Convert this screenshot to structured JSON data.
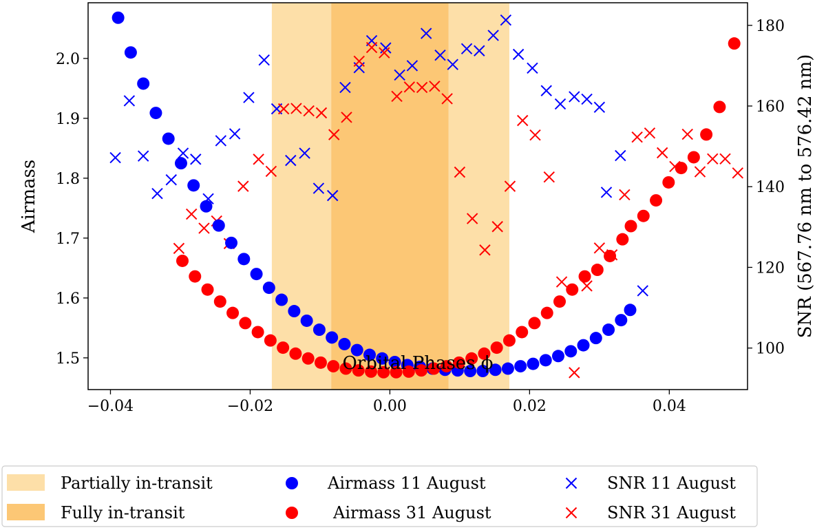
{
  "chart_data": {
    "type": "scatter",
    "xlabel": "Orbital Phases ϕ",
    "ylabel_left": "Airmass",
    "ylabel_right": "SNR (567.76 nm to 576.42 nm)",
    "x_range": [
      -0.0432,
      0.0512
    ],
    "y_left_range": [
      1.447,
      2.093
    ],
    "y_right_range": [
      89.7,
      185.6
    ],
    "x_ticks": [
      -0.04,
      -0.02,
      0.0,
      0.02,
      0.04
    ],
    "x_tick_labels": [
      "−0.04",
      "−0.02",
      "0.00",
      "0.02",
      "0.04"
    ],
    "y_left_ticks": [
      1.5,
      1.6,
      1.7,
      1.8,
      1.9,
      2.0
    ],
    "y_left_tick_labels": [
      "1.5",
      "1.6",
      "1.7",
      "1.8",
      "1.9",
      "2.0"
    ],
    "y_right_ticks": [
      100,
      120,
      140,
      160,
      180
    ],
    "y_right_tick_labels": [
      "100",
      "120",
      "140",
      "160",
      "180"
    ],
    "grid": false,
    "legend_position": "below plot, 3 columns",
    "regions": [
      {
        "name": "Partially in-transit",
        "ranges": [
          [
            -0.0169,
            -0.0084
          ],
          [
            0.0084,
            0.0171
          ]
        ],
        "color": "#fddfa8"
      },
      {
        "name": "Fully in-transit",
        "ranges": [
          [
            -0.0084,
            0.0084
          ]
        ],
        "color": "#fcc775"
      }
    ],
    "series": [
      {
        "name": "Airmass 11 August",
        "axis": "left",
        "marker": "circle",
        "color": "#0000ff",
        "points": [
          [
            -0.0389,
            2.068
          ],
          [
            -0.0371,
            2.01
          ],
          [
            -0.0353,
            1.958
          ],
          [
            -0.0335,
            1.909
          ],
          [
            -0.0317,
            1.866
          ],
          [
            -0.0299,
            1.825
          ],
          [
            -0.0281,
            1.788
          ],
          [
            -0.0263,
            1.753
          ],
          [
            -0.0245,
            1.721
          ],
          [
            -0.0227,
            1.692
          ],
          [
            -0.0209,
            1.665
          ],
          [
            -0.0191,
            1.64
          ],
          [
            -0.0173,
            1.617
          ],
          [
            -0.0155,
            1.597
          ],
          [
            -0.0137,
            1.578
          ],
          [
            -0.0119,
            1.562
          ],
          [
            -0.0101,
            1.547
          ],
          [
            -0.0083,
            1.534
          ],
          [
            -0.0065,
            1.523
          ],
          [
            -0.0047,
            1.513
          ],
          [
            -0.0029,
            1.505
          ],
          [
            -0.0011,
            1.499
          ],
          [
            0.0007,
            1.493
          ],
          [
            0.0025,
            1.488
          ],
          [
            0.0043,
            1.485
          ],
          [
            0.0061,
            1.482
          ],
          [
            0.0079,
            1.48
          ],
          [
            0.0097,
            1.479
          ],
          [
            0.0115,
            1.478
          ],
          [
            0.0133,
            1.478
          ],
          [
            0.0151,
            1.48
          ],
          [
            0.0169,
            1.482
          ],
          [
            0.0187,
            1.486
          ],
          [
            0.0205,
            1.49
          ],
          [
            0.0223,
            1.496
          ],
          [
            0.0241,
            1.503
          ],
          [
            0.0259,
            1.511
          ],
          [
            0.0277,
            1.521
          ],
          [
            0.0295,
            1.533
          ],
          [
            0.0313,
            1.547
          ],
          [
            0.0331,
            1.563
          ],
          [
            0.0344,
            1.58
          ]
        ]
      },
      {
        "name": "Airmass 31 August",
        "axis": "left",
        "marker": "circle",
        "color": "#ff0000",
        "points": [
          [
            -0.0297,
            1.662
          ],
          [
            -0.0279,
            1.636
          ],
          [
            -0.0261,
            1.614
          ],
          [
            -0.0243,
            1.594
          ],
          [
            -0.0225,
            1.575
          ],
          [
            -0.0207,
            1.558
          ],
          [
            -0.0189,
            1.543
          ],
          [
            -0.0171,
            1.529
          ],
          [
            -0.0153,
            1.517
          ],
          [
            -0.0135,
            1.507
          ],
          [
            -0.0117,
            1.499
          ],
          [
            -0.0099,
            1.492
          ],
          [
            -0.0081,
            1.486
          ],
          [
            -0.0063,
            1.482
          ],
          [
            -0.0045,
            1.479
          ],
          [
            -0.0027,
            1.477
          ],
          [
            -0.0009,
            1.476
          ],
          [
            0.0009,
            1.476
          ],
          [
            0.0027,
            1.477
          ],
          [
            0.0045,
            1.479
          ],
          [
            0.0063,
            1.482
          ],
          [
            0.0081,
            1.486
          ],
          [
            0.0099,
            1.492
          ],
          [
            0.0117,
            1.499
          ],
          [
            0.0135,
            1.507
          ],
          [
            0.0153,
            1.517
          ],
          [
            0.0171,
            1.529
          ],
          [
            0.0189,
            1.543
          ],
          [
            0.0207,
            1.558
          ],
          [
            0.0225,
            1.575
          ],
          [
            0.0243,
            1.594
          ],
          [
            0.0261,
            1.614
          ],
          [
            0.0279,
            1.636
          ],
          [
            0.0297,
            1.647
          ],
          [
            0.0315,
            1.67
          ],
          [
            0.0333,
            1.698
          ],
          [
            0.0345,
            1.72
          ],
          [
            0.0363,
            1.737
          ],
          [
            0.0381,
            1.763
          ],
          [
            0.0399,
            1.793
          ],
          [
            0.0417,
            1.817
          ],
          [
            0.0435,
            1.835
          ],
          [
            0.0453,
            1.873
          ],
          [
            0.0472,
            1.919
          ],
          [
            0.0493,
            2.025
          ]
        ]
      },
      {
        "name": "SNR 11 August",
        "axis": "right",
        "marker": "x",
        "color": "#0000ff",
        "points": [
          [
            -0.0393,
            147.2
          ],
          [
            -0.0373,
            161.3
          ],
          [
            -0.0353,
            147.6
          ],
          [
            -0.0333,
            138.3
          ],
          [
            -0.0313,
            141.7
          ],
          [
            -0.0296,
            148.3
          ],
          [
            -0.0278,
            146.8
          ],
          [
            -0.026,
            137.0
          ],
          [
            -0.0242,
            151.4
          ],
          [
            -0.0222,
            153.1
          ],
          [
            -0.0202,
            162.1
          ],
          [
            -0.018,
            171.4
          ],
          [
            -0.0162,
            159.3
          ],
          [
            -0.0142,
            146.5
          ],
          [
            -0.0122,
            148.3
          ],
          [
            -0.0102,
            139.6
          ],
          [
            -0.0082,
            137.8
          ],
          [
            -0.0064,
            164.6
          ],
          [
            -0.0044,
            169.5
          ],
          [
            -0.0026,
            176.2
          ],
          [
            -0.0006,
            174.4
          ],
          [
            0.0014,
            167.7
          ],
          [
            0.0032,
            170.0
          ],
          [
            0.0052,
            178.0
          ],
          [
            0.0072,
            172.6
          ],
          [
            0.009,
            170.3
          ],
          [
            0.011,
            174.2
          ],
          [
            0.0128,
            173.7
          ],
          [
            0.0148,
            177.5
          ],
          [
            0.0166,
            181.3
          ],
          [
            0.0184,
            172.8
          ],
          [
            0.0204,
            169.4
          ],
          [
            0.0224,
            163.8
          ],
          [
            0.0244,
            160.5
          ],
          [
            0.0264,
            162.3
          ],
          [
            0.0282,
            161.7
          ],
          [
            0.03,
            159.7
          ],
          [
            0.033,
            147.7
          ],
          [
            0.031,
            138.6
          ],
          [
            0.0362,
            114.2
          ]
        ]
      },
      {
        "name": "SNR 31 August",
        "axis": "right",
        "marker": "x",
        "color": "#ff0000",
        "points": [
          [
            -0.0302,
            124.7
          ],
          [
            -0.0284,
            133.2
          ],
          [
            -0.0266,
            129.7
          ],
          [
            -0.0248,
            131.5
          ],
          [
            -0.023,
            125.9
          ],
          [
            -0.021,
            140.1
          ],
          [
            -0.0188,
            146.8
          ],
          [
            -0.017,
            143.8
          ],
          [
            -0.0152,
            159.3
          ],
          [
            -0.0134,
            159.4
          ],
          [
            -0.0116,
            158.8
          ],
          [
            -0.0098,
            158.3
          ],
          [
            -0.008,
            152.9
          ],
          [
            -0.0062,
            157.2
          ],
          [
            -0.0044,
            171.1
          ],
          [
            -0.0026,
            174.5
          ],
          [
            -0.0008,
            173.2
          ],
          [
            0.001,
            162.4
          ],
          [
            0.0028,
            164.7
          ],
          [
            0.0046,
            164.6
          ],
          [
            0.0064,
            164.9
          ],
          [
            0.0082,
            161.8
          ],
          [
            0.01,
            143.6
          ],
          [
            0.0118,
            132.1
          ],
          [
            0.0136,
            124.3
          ],
          [
            0.0154,
            130.1
          ],
          [
            0.0172,
            140.1
          ],
          [
            0.019,
            156.4
          ],
          [
            0.0208,
            152.8
          ],
          [
            0.0228,
            142.4
          ],
          [
            0.0246,
            116.4
          ],
          [
            0.0264,
            93.9
          ],
          [
            0.0282,
            115.4
          ],
          [
            0.03,
            124.8
          ],
          [
            0.0318,
            123.1
          ],
          [
            0.0336,
            138.0
          ],
          [
            0.0354,
            152.3
          ],
          [
            0.0372,
            153.3
          ],
          [
            0.039,
            148.4
          ],
          [
            0.0408,
            145.0
          ],
          [
            0.0426,
            153.0
          ],
          [
            0.0444,
            143.7
          ],
          [
            0.0462,
            146.9
          ],
          [
            0.048,
            146.9
          ],
          [
            0.0498,
            143.4
          ]
        ]
      }
    ]
  }
}
